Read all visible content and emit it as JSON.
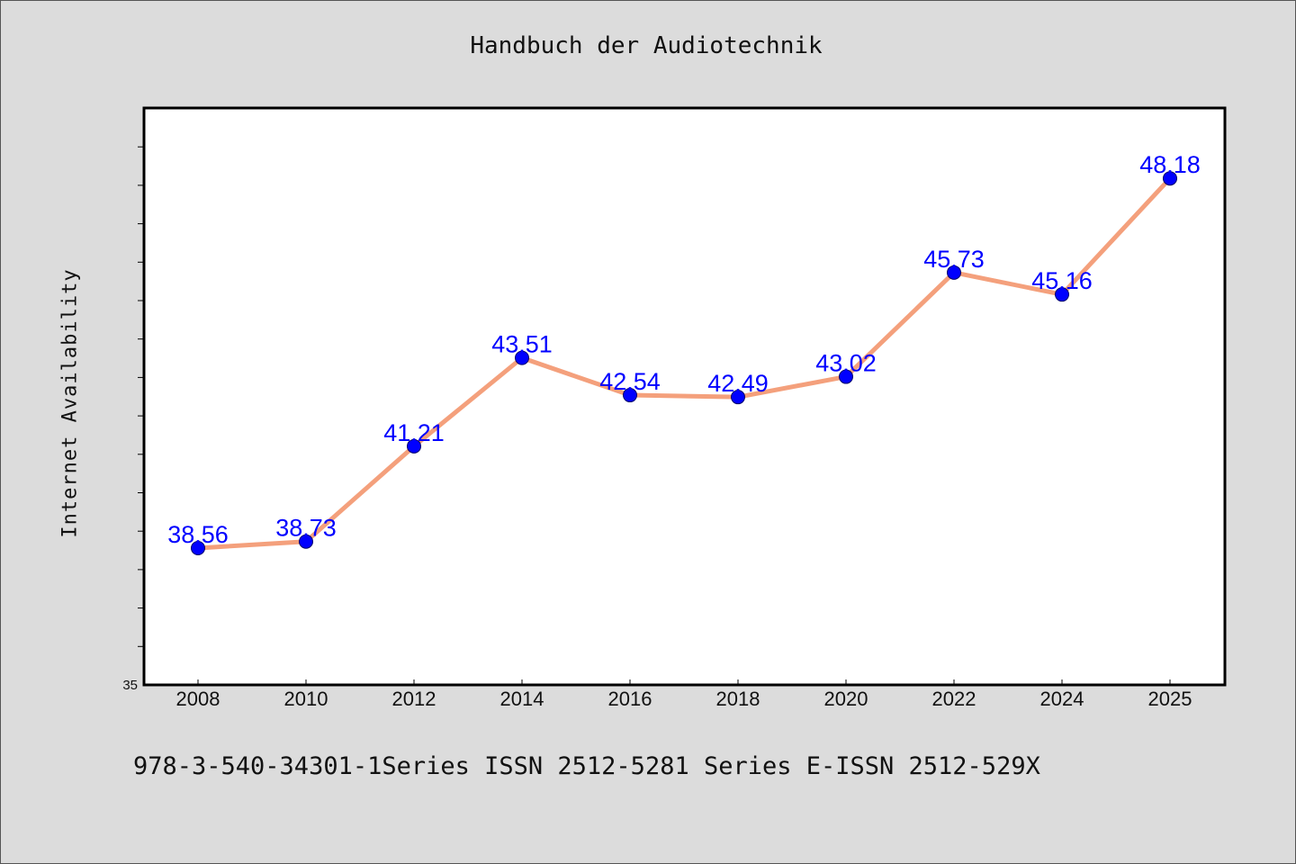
{
  "chart_data": {
    "type": "line",
    "title": "Handbuch der Audiotechnik",
    "xlabel": "",
    "ylabel": "Internet Availability",
    "categories": [
      "2008",
      "2010",
      "2012",
      "2014",
      "2016",
      "2018",
      "2020",
      "2022",
      "2024",
      "2025"
    ],
    "series": [
      {
        "values": [
          38.56,
          38.73,
          41.21,
          43.51,
          42.54,
          42.49,
          43.02,
          45.73,
          45.16,
          48.18
        ]
      }
    ],
    "data_labels": [
      "38.56",
      "38.73",
      "41.21",
      "43.51",
      "42.54",
      "42.49",
      "43.02",
      "45.73",
      "45.16",
      "48.18"
    ],
    "ylim": [
      35,
      50
    ],
    "y_tick_label": "35",
    "grid": false,
    "legend": "none",
    "colors": {
      "line": "#f4a07c",
      "marker": "#0000ff",
      "label": "#0000ff",
      "background": "#dcdcdc",
      "plot_background": "#ffffff"
    }
  },
  "footer": {
    "text": "978-3-540-34301-1Series ISSN 2512-5281 Series E-ISSN 2512-529X"
  }
}
